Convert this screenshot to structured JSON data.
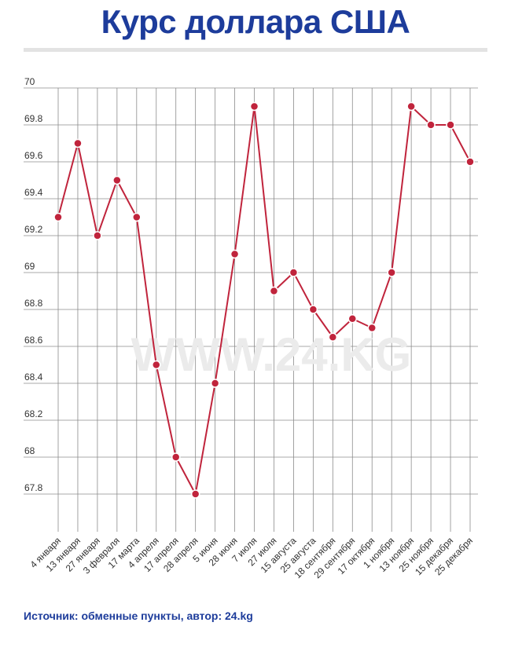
{
  "title": "Курс доллара США",
  "source": "Источник: обменные пункты, автор: 24.kg",
  "watermark": "WWW.24.KG",
  "colors": {
    "title": "#1d3c9b",
    "line": "#c0243c",
    "grid": "#8c8c8c"
  },
  "chart_data": {
    "type": "line",
    "title": "Курс доллара США",
    "xlabel": "",
    "ylabel": "",
    "ylim": [
      67.6,
      70
    ],
    "yticks": [
      "70",
      "69.8",
      "69.6",
      "69.4",
      "69.2",
      "69",
      "68.8",
      "68.6",
      "68.4",
      "68.2",
      "68",
      "67.8"
    ],
    "grid": true,
    "categories": [
      "4 января",
      "13 января",
      "27 января",
      "3 февраля",
      "17 марта",
      "4 апреля",
      "17 апреля",
      "28 апреля",
      "5 июня",
      "28 июня",
      "7 июля",
      "27 июля",
      "15 августа",
      "25 августа",
      "18 сентября",
      "29 сентября",
      "17 октября",
      "1 ноября",
      "13 ноября",
      "25 ноября",
      "15 декабря",
      "25 декабря"
    ],
    "values": [
      69.3,
      69.7,
      69.2,
      69.5,
      69.3,
      68.5,
      68.0,
      67.8,
      68.4,
      69.1,
      69.9,
      68.9,
      69.0,
      68.8,
      68.65,
      68.75,
      68.7,
      69.0,
      69.9,
      69.8,
      69.8,
      69.6
    ]
  }
}
